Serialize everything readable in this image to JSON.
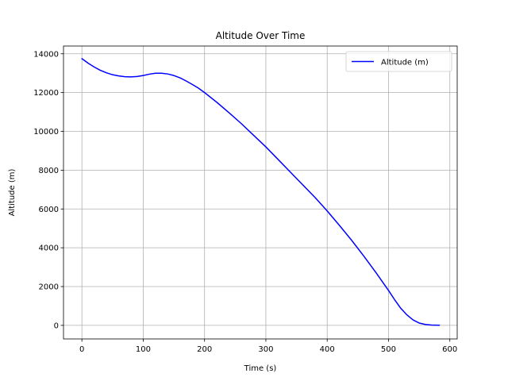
{
  "chart_data": {
    "type": "line",
    "title": "Altitude Over Time",
    "xlabel": "Time (s)",
    "ylabel": "Altitude (m)",
    "xlim": [
      -30,
      612
    ],
    "ylim": [
      -700,
      14400
    ],
    "xticks": [
      0,
      100,
      200,
      300,
      400,
      500,
      600
    ],
    "yticks": [
      0,
      2000,
      4000,
      6000,
      8000,
      10000,
      12000,
      14000
    ],
    "grid": true,
    "legend_position": "top-right",
    "series": [
      {
        "name": "Altitude (m)",
        "color": "#0000ff",
        "x": [
          0,
          10,
          20,
          30,
          40,
          50,
          60,
          70,
          80,
          90,
          100,
          110,
          120,
          130,
          140,
          150,
          160,
          170,
          180,
          190,
          200,
          220,
          240,
          260,
          280,
          300,
          320,
          340,
          360,
          380,
          400,
          420,
          440,
          460,
          480,
          500,
          510,
          520,
          530,
          540,
          550,
          560,
          570,
          583
        ],
        "y": [
          13750,
          13520,
          13320,
          13150,
          13020,
          12920,
          12860,
          12820,
          12810,
          12830,
          12880,
          12950,
          13000,
          13000,
          12960,
          12880,
          12760,
          12600,
          12420,
          12230,
          12000,
          11500,
          10960,
          10400,
          9800,
          9200,
          8550,
          7900,
          7250,
          6600,
          5900,
          5150,
          4380,
          3560,
          2700,
          1800,
          1320,
          880,
          540,
          280,
          120,
          45,
          15,
          5
        ]
      }
    ]
  }
}
